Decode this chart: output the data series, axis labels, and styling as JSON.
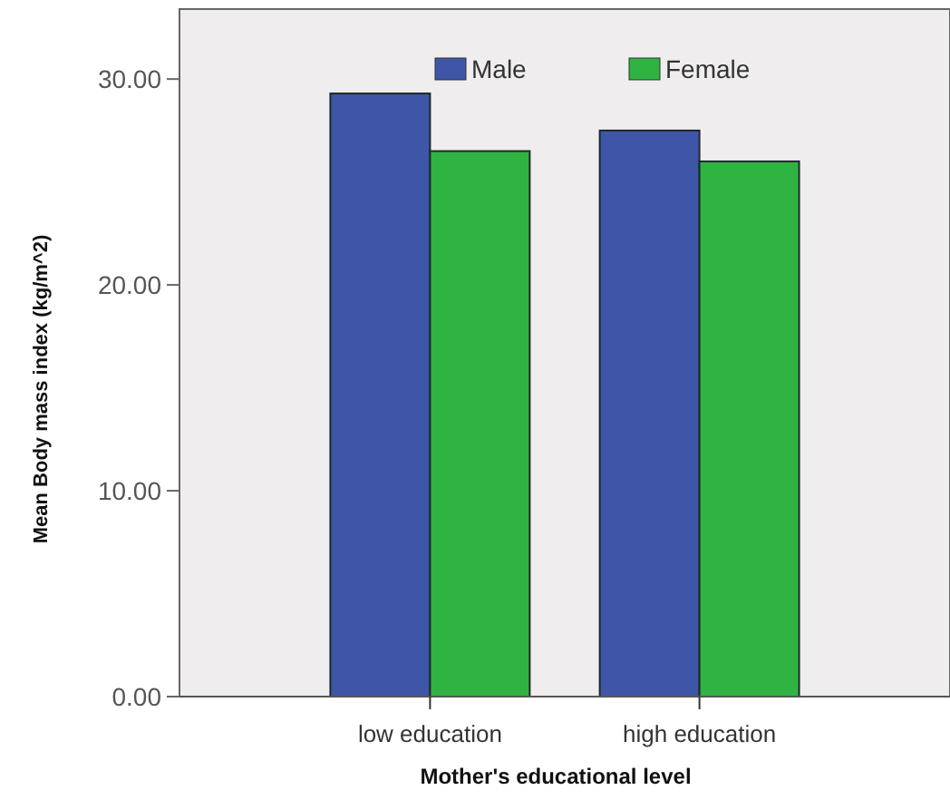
{
  "chart_data": {
    "type": "bar",
    "xlabel": "Mother's educational level",
    "ylabel": "Mean Body mass index (kg/m^2)",
    "categories": [
      "low education",
      "high education"
    ],
    "series": [
      {
        "name": "Male",
        "color": "#3f55a8",
        "values": [
          29.3,
          27.5
        ]
      },
      {
        "name": "Female",
        "color": "#30b441",
        "values": [
          26.5,
          26.0
        ]
      }
    ],
    "ylim": [
      0,
      33.4
    ],
    "yticks": [
      {
        "value": 0,
        "label": "0.00"
      },
      {
        "value": 10,
        "label": "10.00"
      },
      {
        "value": 20,
        "label": "20.00"
      },
      {
        "value": 30,
        "label": "30.00"
      }
    ],
    "grid": false,
    "legend": "top"
  }
}
